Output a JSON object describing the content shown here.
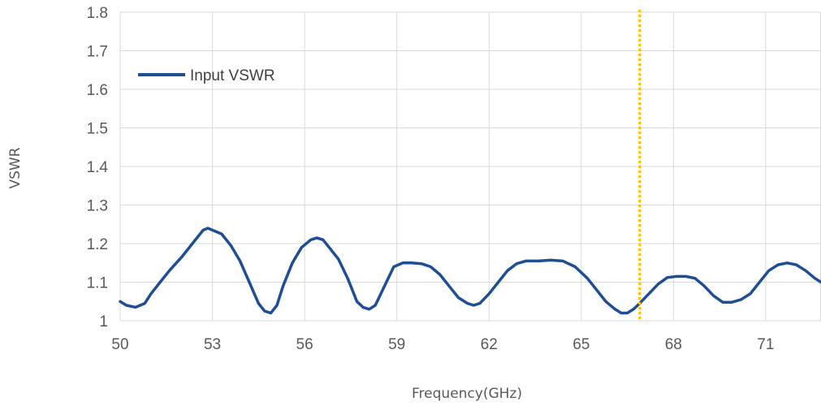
{
  "chart_data": {
    "type": "line",
    "title": "",
    "xlabel": "Frequency(GHz)",
    "ylabel": "VSWR",
    "xlim": [
      50,
      72.8
    ],
    "ylim": [
      1,
      1.8
    ],
    "x_ticks": [
      "50",
      "53",
      "56",
      "59",
      "62",
      "65",
      "68",
      "71"
    ],
    "y_ticks": [
      "1",
      "1.1",
      "1.2",
      "1.3",
      "1.4",
      "1.5",
      "1.6",
      "1.7",
      "1.8"
    ],
    "grid": true,
    "legend_position": "top-left",
    "marker_line": {
      "x": 66.9,
      "style": "dotted",
      "color": "#FFC000"
    },
    "series": [
      {
        "name": "Input VSWR",
        "color": "#1F4E93",
        "x": [
          50.0,
          50.2,
          50.5,
          50.8,
          51.0,
          51.3,
          51.6,
          52.0,
          52.4,
          52.7,
          52.85,
          53.0,
          53.3,
          53.6,
          53.9,
          54.2,
          54.5,
          54.7,
          54.9,
          55.1,
          55.3,
          55.6,
          55.9,
          56.2,
          56.4,
          56.6,
          56.8,
          57.1,
          57.4,
          57.7,
          57.9,
          58.1,
          58.3,
          58.6,
          58.9,
          59.2,
          59.5,
          59.8,
          60.1,
          60.4,
          60.7,
          61.0,
          61.3,
          61.5,
          61.7,
          62.0,
          62.3,
          62.6,
          62.9,
          63.2,
          63.6,
          64.0,
          64.4,
          64.8,
          65.2,
          65.5,
          65.8,
          66.1,
          66.3,
          66.5,
          66.7,
          66.9,
          67.2,
          67.5,
          67.8,
          68.1,
          68.4,
          68.7,
          69.0,
          69.3,
          69.6,
          69.9,
          70.2,
          70.5,
          70.8,
          71.1,
          71.4,
          71.7,
          72.0,
          72.3,
          72.6,
          72.8
        ],
        "values": [
          1.05,
          1.04,
          1.035,
          1.045,
          1.07,
          1.1,
          1.13,
          1.165,
          1.205,
          1.235,
          1.24,
          1.235,
          1.225,
          1.195,
          1.155,
          1.1,
          1.045,
          1.025,
          1.02,
          1.04,
          1.09,
          1.15,
          1.19,
          1.21,
          1.215,
          1.21,
          1.19,
          1.16,
          1.11,
          1.05,
          1.035,
          1.03,
          1.04,
          1.09,
          1.14,
          1.15,
          1.15,
          1.148,
          1.14,
          1.12,
          1.09,
          1.06,
          1.045,
          1.04,
          1.045,
          1.07,
          1.1,
          1.13,
          1.148,
          1.155,
          1.155,
          1.157,
          1.155,
          1.14,
          1.11,
          1.08,
          1.05,
          1.03,
          1.02,
          1.02,
          1.03,
          1.045,
          1.07,
          1.095,
          1.112,
          1.115,
          1.115,
          1.11,
          1.09,
          1.065,
          1.048,
          1.048,
          1.055,
          1.07,
          1.1,
          1.13,
          1.145,
          1.15,
          1.145,
          1.13,
          1.11,
          1.1
        ]
      }
    ]
  }
}
